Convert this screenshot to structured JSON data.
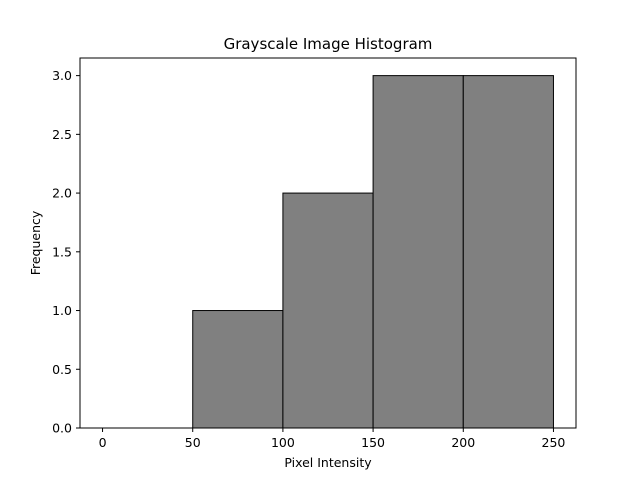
{
  "chart_data": {
    "type": "bar",
    "title": "Grayscale Image Histogram",
    "xlabel": "Pixel Intensity",
    "ylabel": "Frequency",
    "bins": [
      {
        "start": 0,
        "end": 50,
        "value": 0
      },
      {
        "start": 50,
        "end": 100,
        "value": 1
      },
      {
        "start": 100,
        "end": 150,
        "value": 2
      },
      {
        "start": 150,
        "end": 200,
        "value": 3
      },
      {
        "start": 200,
        "end": 250,
        "value": 3
      }
    ],
    "xlim": [
      -12.5,
      262.5
    ],
    "ylim": [
      0,
      3.15
    ],
    "x_ticks": [
      0,
      50,
      100,
      150,
      200,
      250
    ],
    "x_tick_labels": [
      "0",
      "50",
      "100",
      "150",
      "200",
      "250"
    ],
    "y_ticks": [
      0,
      0.5,
      1,
      1.5,
      2,
      2.5,
      3
    ],
    "y_tick_labels": [
      "0.0",
      "0.5",
      "1.0",
      "1.5",
      "2.0",
      "2.5",
      "3.0"
    ],
    "bar_color": "#808080",
    "edge_color": "#000000",
    "grid": false,
    "legend": "none"
  }
}
